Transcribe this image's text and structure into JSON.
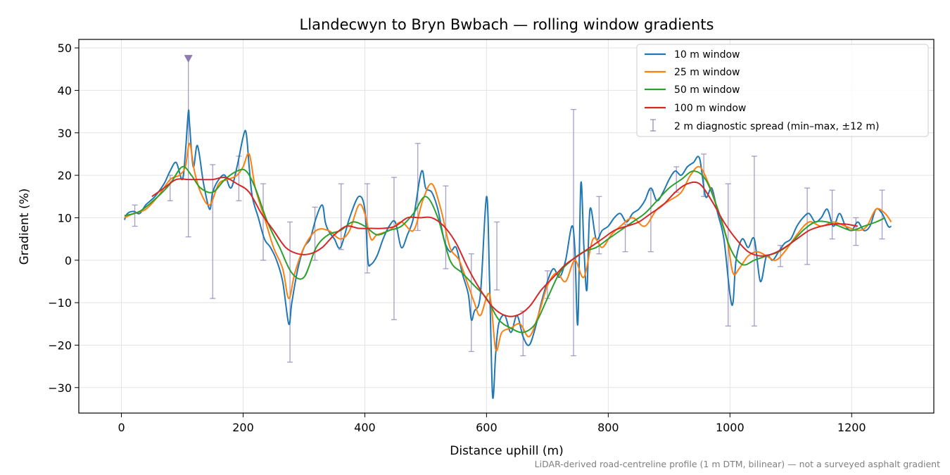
{
  "chart_data": {
    "type": "line",
    "title": "Llandecwyn to Bryn Bwbach — rolling window gradients",
    "xlabel": "Distance uphill (m)",
    "ylabel": "Gradient (%)",
    "caption": "LiDAR-derived road-centreline profile (1 m DTM, bilinear) — not a surveyed asphalt gradient",
    "xlim": [
      -70,
      1335
    ],
    "ylim": [
      -36,
      52
    ],
    "xticks": [
      0,
      200,
      400,
      600,
      800,
      1000,
      1200
    ],
    "xtick_labels": [
      "0",
      "200",
      "400",
      "600",
      "800",
      "1000",
      "1200"
    ],
    "yticks": [
      -30,
      -20,
      -10,
      0,
      10,
      20,
      30,
      40,
      50
    ],
    "ytick_labels": [
      "−30",
      "−20",
      "−10",
      "0",
      "10",
      "20",
      "30",
      "40",
      "50"
    ],
    "grid": true,
    "legend_position": "top-right",
    "series": [
      {
        "name": "10 m window",
        "color": "#1f77b4",
        "x": [
          5,
          10,
          20,
          30,
          40,
          55,
          70,
          80,
          90,
          100,
          105,
          110,
          112,
          118,
          125,
          135,
          145,
          150,
          160,
          170,
          180,
          190,
          200,
          205,
          210,
          215,
          225,
          235,
          245,
          255,
          265,
          275,
          280,
          290,
          300,
          310,
          320,
          330,
          335,
          340,
          350,
          360,
          375,
          390,
          400,
          405,
          410,
          420,
          430,
          440,
          450,
          460,
          470,
          480,
          490,
          495,
          500,
          510,
          520,
          530,
          540,
          550,
          560,
          570,
          575,
          580,
          590,
          600,
          605,
          610,
          615,
          620,
          630,
          640,
          650,
          660,
          670,
          680,
          690,
          700,
          710,
          720,
          730,
          740,
          745,
          750,
          755,
          760,
          765,
          770,
          780,
          790,
          800,
          810,
          820,
          830,
          840,
          850,
          860,
          870,
          880,
          890,
          900,
          910,
          920,
          930,
          940,
          950,
          960,
          970,
          980,
          990,
          1000,
          1005,
          1010,
          1020,
          1030,
          1040,
          1050,
          1060,
          1070,
          1080,
          1090,
          1100,
          1110,
          1120,
          1130,
          1140,
          1150,
          1160,
          1170,
          1180,
          1190,
          1200,
          1210,
          1220,
          1230,
          1240,
          1250,
          1260,
          1265
        ],
        "values": [
          9.5,
          11,
          11.5,
          11,
          13,
          15,
          18,
          21,
          23,
          19,
          25,
          35,
          32,
          22,
          27,
          18,
          12,
          16,
          19,
          20,
          17,
          22,
          29,
          30,
          22,
          15,
          10,
          5,
          3,
          0,
          -5,
          -15,
          -10,
          -2,
          3,
          5,
          10,
          13,
          9,
          7,
          5,
          3,
          10,
          15,
          12,
          0,
          -1,
          1,
          5,
          8,
          9,
          3,
          6,
          10,
          19,
          21,
          17,
          16,
          12,
          5,
          2,
          3,
          -3,
          -8,
          -14,
          -12,
          -8,
          15,
          -5,
          -32,
          -22,
          -15,
          -13,
          -17,
          -13,
          -18,
          -20,
          -16,
          -10,
          -5,
          -2,
          -4,
          0,
          8,
          3,
          -15,
          18,
          3,
          -7,
          12,
          5,
          7,
          8,
          10,
          11,
          9,
          11,
          12,
          14,
          17,
          14,
          16,
          19,
          21,
          20,
          22,
          23,
          24,
          15,
          17,
          11,
          5,
          -8,
          -10,
          0,
          5,
          3,
          5,
          -5,
          1,
          0,
          2,
          4,
          5,
          8,
          10,
          11,
          9,
          10,
          12,
          8,
          11,
          8,
          7,
          9,
          7,
          8,
          12,
          11,
          8,
          8
        ]
      },
      {
        "name": "25 m window",
        "color": "#ff7f0e",
        "x": [
          5,
          20,
          40,
          60,
          80,
          95,
          105,
          112,
          120,
          130,
          145,
          160,
          175,
          190,
          200,
          210,
          220,
          235,
          250,
          265,
          275,
          285,
          300,
          320,
          340,
          360,
          375,
          390,
          400,
          410,
          420,
          440,
          460,
          480,
          495,
          510,
          525,
          540,
          555,
          570,
          580,
          590,
          605,
          615,
          625,
          640,
          655,
          670,
          685,
          700,
          715,
          730,
          745,
          760,
          775,
          790,
          805,
          820,
          840,
          860,
          880,
          900,
          920,
          935,
          950,
          965,
          980,
          995,
          1005,
          1015,
          1030,
          1045,
          1060,
          1075,
          1090,
          1110,
          1130,
          1150,
          1170,
          1190,
          1210,
          1225,
          1240,
          1255,
          1265
        ],
        "values": [
          10,
          11,
          12,
          15,
          19,
          20,
          22,
          27.5,
          21,
          16,
          13,
          18,
          19,
          20,
          22,
          25,
          17,
          10,
          3,
          -2,
          -9,
          -3,
          3,
          7,
          7,
          5,
          7,
          13,
          11,
          5,
          6,
          7,
          9,
          7,
          14,
          18,
          12,
          3,
          0,
          -6,
          -10,
          -13,
          -8,
          -21,
          -17,
          -16,
          -15,
          -18,
          -13,
          -6,
          -3,
          -5,
          0,
          -4,
          5,
          3,
          6,
          8,
          10,
          8,
          12,
          14,
          16,
          20,
          22,
          18,
          12,
          5,
          -3,
          -2,
          1,
          2,
          1,
          0,
          2,
          6,
          9,
          8,
          9,
          8,
          7,
          8,
          12,
          11,
          9
        ]
      },
      {
        "name": "50 m window",
        "color": "#2ca02c",
        "x": [
          5,
          30,
          60,
          80,
          100,
          115,
          130,
          150,
          170,
          190,
          205,
          220,
          240,
          260,
          280,
          300,
          320,
          340,
          360,
          380,
          400,
          420,
          440,
          460,
          480,
          500,
          520,
          540,
          560,
          580,
          600,
          620,
          640,
          660,
          680,
          700,
          720,
          740,
          760,
          780,
          800,
          820,
          840,
          860,
          880,
          900,
          920,
          940,
          960,
          980,
          1000,
          1020,
          1040,
          1060,
          1080,
          1100,
          1120,
          1140,
          1160,
          1180,
          1200,
          1220,
          1240,
          1255
        ],
        "values": [
          10.5,
          11.5,
          15,
          18,
          22,
          20,
          17,
          16,
          19,
          21,
          21,
          17,
          9,
          3,
          -3,
          -4,
          3,
          6,
          7,
          9,
          8,
          6,
          7,
          8,
          11,
          15,
          10,
          0,
          -3,
          -6,
          -9,
          -14,
          -16,
          -17,
          -15,
          -9,
          -3,
          0,
          2,
          3,
          5,
          7,
          9,
          11,
          14,
          17,
          19,
          21,
          19,
          12,
          3,
          -1,
          0,
          1,
          2,
          4,
          7,
          9,
          9,
          8,
          7,
          8,
          9,
          10
        ]
      },
      {
        "name": "100 m window",
        "color": "#d62728",
        "x": [
          50,
          70,
          90,
          110,
          130,
          150,
          170,
          190,
          210,
          230,
          250,
          270,
          290,
          310,
          330,
          350,
          370,
          390,
          410,
          430,
          450,
          470,
          490,
          510,
          530,
          550,
          570,
          590,
          610,
          630,
          650,
          670,
          690,
          710,
          730,
          750,
          770,
          790,
          810,
          830,
          850,
          870,
          890,
          910,
          930,
          950,
          970,
          990,
          1010,
          1030,
          1050,
          1070,
          1090,
          1110,
          1130,
          1150,
          1170,
          1190,
          1210
        ],
        "values": [
          15,
          17,
          19,
          19,
          19,
          19,
          19.5,
          18,
          16,
          11,
          7,
          3,
          1.5,
          1.5,
          3,
          6,
          8,
          7.5,
          7.5,
          7.5,
          8,
          10,
          10,
          10,
          8,
          4,
          -2,
          -7,
          -11,
          -13,
          -13,
          -11,
          -7,
          -4,
          -1,
          1,
          3,
          5,
          7,
          8,
          9,
          11,
          13,
          16,
          18,
          18,
          14,
          9,
          5,
          2,
          1,
          1.5,
          3,
          5,
          7,
          8,
          8.5,
          8.5,
          8
        ]
      }
    ],
    "diagnostic_spread": {
      "name": "2 m diagnostic spread (min–max, ±12 m)",
      "color": "#9a8cbe",
      "x": [
        22,
        80,
        110,
        150,
        193,
        233,
        277,
        318,
        361,
        404,
        448,
        487,
        533,
        575,
        617,
        660,
        700,
        743,
        785,
        828,
        870,
        912,
        957,
        997,
        1040,
        1083,
        1127,
        1168,
        1207,
        1250
      ],
      "min": [
        8,
        14,
        5.5,
        -9,
        14,
        0,
        -24,
        0,
        2.5,
        -3,
        -14,
        7,
        -2,
        -21.5,
        -7,
        -22.5,
        -9,
        -22.5,
        1.5,
        2,
        2,
        16,
        15,
        -15.5,
        -15.5,
        -1.5,
        -1,
        5,
        3.5,
        5
      ],
      "max": [
        13,
        20,
        48,
        22.5,
        24.5,
        18,
        9,
        12.5,
        18,
        18,
        19.5,
        27.5,
        17.5,
        1.5,
        9,
        -12,
        -2.5,
        35.5,
        15,
        8.5,
        16.5,
        22,
        25,
        18,
        24.5,
        3.5,
        17,
        16.5,
        10,
        16.5
      ]
    },
    "marker": {
      "x": 110,
      "y": 47.5,
      "shape": "triangle-down",
      "color": "#8c7ab0"
    }
  }
}
